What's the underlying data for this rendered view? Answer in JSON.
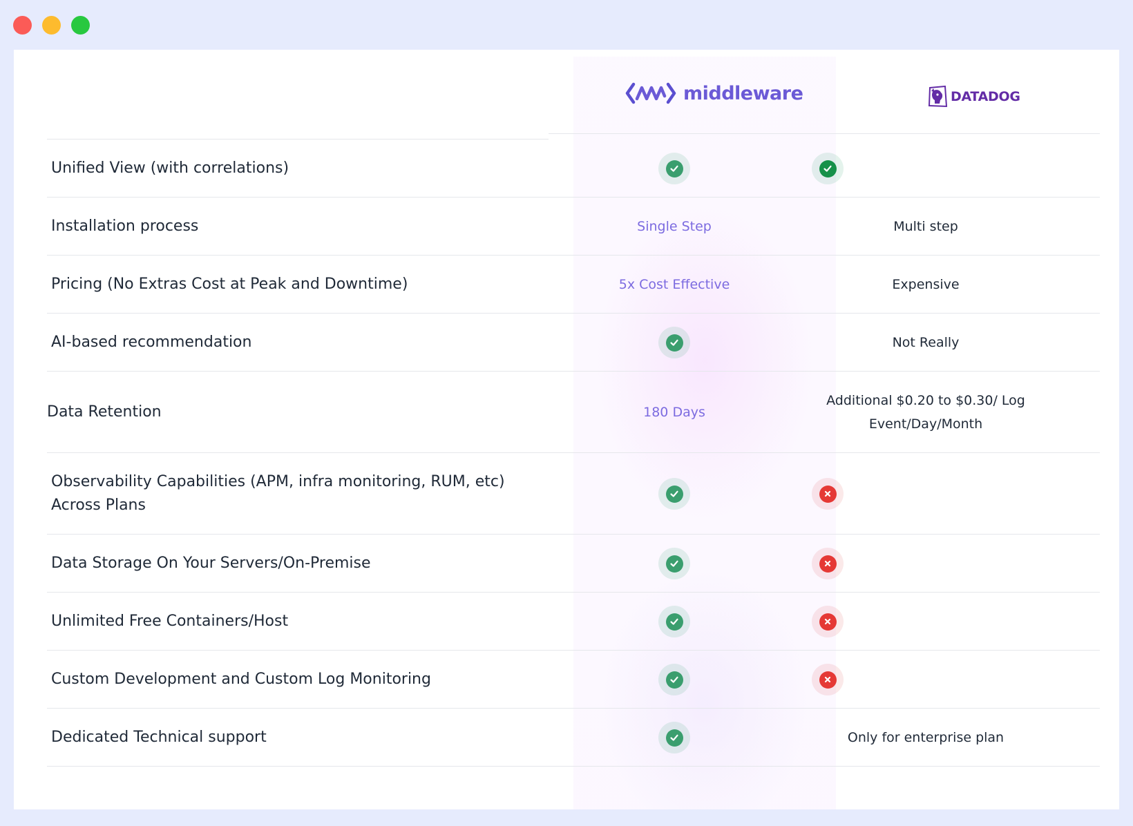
{
  "window": {
    "controls": [
      "close",
      "minimize",
      "maximize"
    ]
  },
  "header": {
    "middleware_logo_text": "middleware",
    "datadog_logo_text": "DATADOG"
  },
  "colors": {
    "middleware_accent": "#7c6be0",
    "check_green": "#3a9e6e",
    "cross_red": "#e53935",
    "page_background": "#e6ebfd"
  },
  "rows": [
    {
      "feature": "Unified View (with correlations)",
      "middleware": {
        "type": "icon",
        "icon": "check-icon"
      },
      "datadog": {
        "type": "icon",
        "icon": "check-icon"
      }
    },
    {
      "feature": "Installation process",
      "middleware": {
        "type": "text",
        "text": "Single Step"
      },
      "datadog": {
        "type": "text",
        "text": "Multi step"
      }
    },
    {
      "feature": "Pricing (No Extras Cost at Peak and Downtime)",
      "middleware": {
        "type": "text",
        "text": "5x Cost Effective"
      },
      "datadog": {
        "type": "text",
        "text": "Expensive"
      }
    },
    {
      "feature": "AI-based recommendation",
      "middleware": {
        "type": "icon",
        "icon": "check-icon"
      },
      "datadog": {
        "type": "text",
        "text": "Not Really"
      }
    },
    {
      "feature": "Data Retention",
      "middleware": {
        "type": "text",
        "text": "180 Days"
      },
      "datadog": {
        "type": "text",
        "text": "Additional $0.20 to $0.30/ Log Event/Day/Month"
      }
    },
    {
      "feature": "Observability Capabilities (APM, infra monitoring, RUM, etc) Across Plans",
      "middleware": {
        "type": "icon",
        "icon": "check-icon"
      },
      "datadog": {
        "type": "icon",
        "icon": "cross-icon"
      }
    },
    {
      "feature": "Data Storage On Your Servers/On-Premise",
      "middleware": {
        "type": "icon",
        "icon": "check-icon"
      },
      "datadog": {
        "type": "icon",
        "icon": "cross-icon"
      }
    },
    {
      "feature": "Unlimited Free Containers/Host",
      "middleware": {
        "type": "icon",
        "icon": "check-icon"
      },
      "datadog": {
        "type": "icon",
        "icon": "cross-icon"
      }
    },
    {
      "feature": "Custom Development and Custom Log Monitoring",
      "middleware": {
        "type": "icon",
        "icon": "check-icon"
      },
      "datadog": {
        "type": "icon",
        "icon": "cross-icon"
      }
    },
    {
      "feature": "Dedicated Technical support",
      "middleware": {
        "type": "icon",
        "icon": "check-icon"
      },
      "datadog": {
        "type": "text",
        "text": "Only for enterprise plan"
      }
    }
  ]
}
